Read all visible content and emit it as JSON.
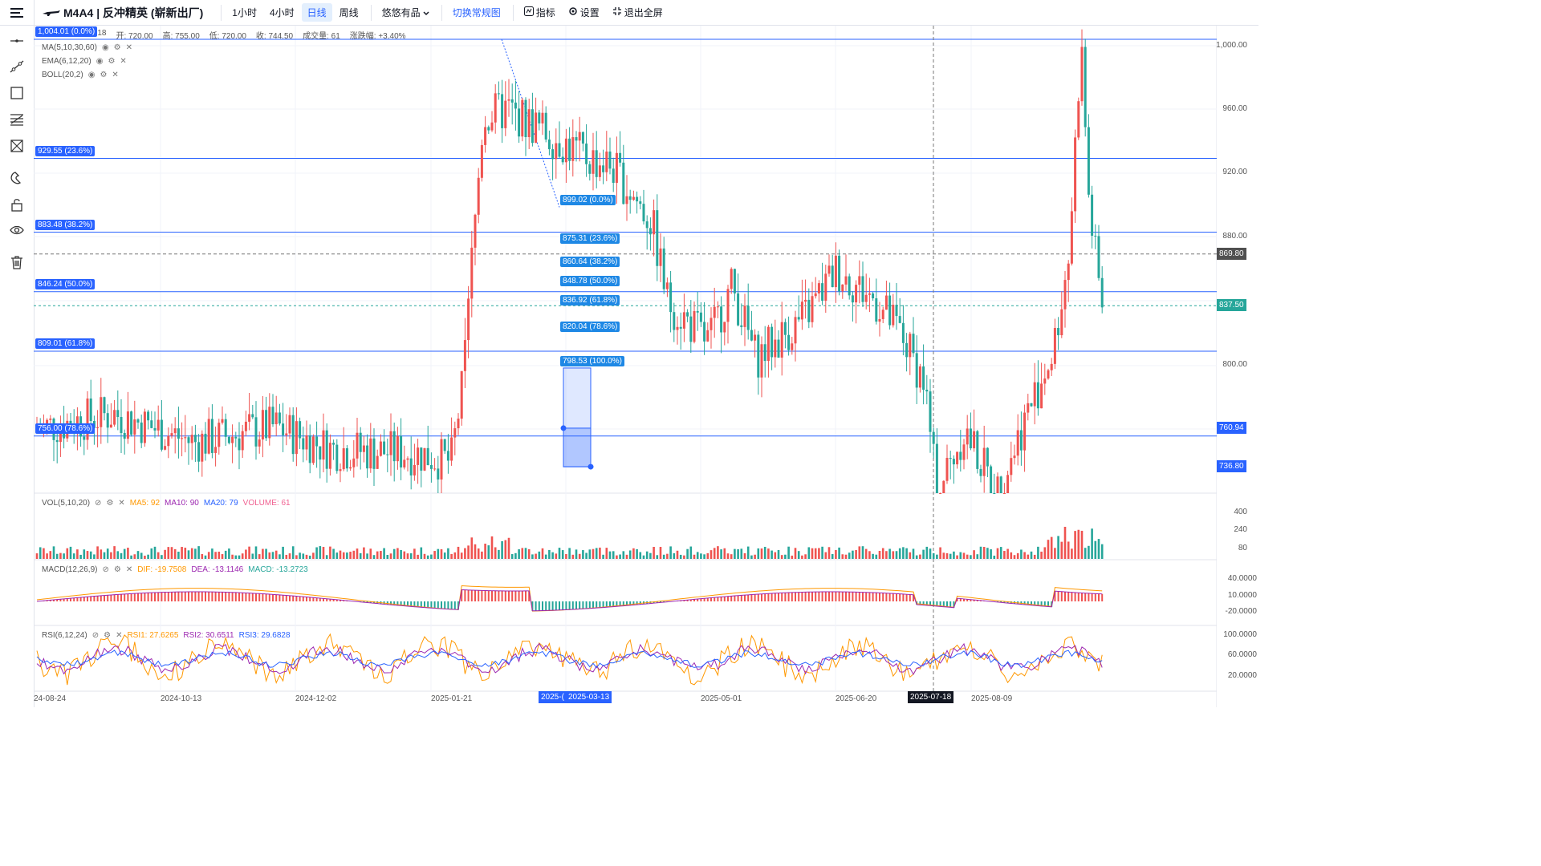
{
  "toolbar": {
    "title": "M4A4 | 反冲精英 (崭新出厂)",
    "intervals": [
      "1小时",
      "4小时",
      "日线",
      "周线"
    ],
    "active_interval": "日线",
    "source": "悠悠有品",
    "switch_view": "切换常规图",
    "indicators": "指标",
    "settings": "设置",
    "exit_fullscreen": "退出全屏"
  },
  "sidebar": {
    "tools": [
      "cursor-icon",
      "trendline-icon",
      "rectangle-icon",
      "fib-icon",
      "pattern-icon",
      "magnet-icon",
      "lock-icon",
      "eye-icon",
      "trash-icon"
    ]
  },
  "legend": {
    "date_partial": "-18",
    "open_label": "开:",
    "open": "720.00",
    "high_label": "高:",
    "high": "755.00",
    "low_label": "低:",
    "low": "720.00",
    "close_label": "收:",
    "close": "744.50",
    "volume_label": "成交量:",
    "volume": "61",
    "change_label": "涨跌幅:",
    "change": "+3.40%",
    "indicators": [
      "MA(5,10,30,60)",
      "EMA(6,12,20)",
      "BOLL(20,2)"
    ]
  },
  "fib_left": [
    {
      "text": "1,004.01 (0.0%)",
      "price": 1004.01
    },
    {
      "text": "929.55 (23.6%)",
      "price": 929.55
    },
    {
      "text": "883.48 (38.2%)",
      "price": 883.48
    },
    {
      "text": "846.24 (50.0%)",
      "price": 846.24
    },
    {
      "text": "809.01 (61.8%)",
      "price": 809.01
    },
    {
      "text": "756.00 (78.6%)",
      "price": 756.0
    }
  ],
  "fib_mid": [
    {
      "text": "899.02 (0.0%)",
      "price": 899.02
    },
    {
      "text": "875.31 (23.6%)",
      "price": 875.31
    },
    {
      "text": "860.64 (38.2%)",
      "price": 860.64
    },
    {
      "text": "848.78 (50.0%)",
      "price": 848.78
    },
    {
      "text": "836.92 (61.8%)",
      "price": 836.92
    },
    {
      "text": "820.04 (78.6%)",
      "price": 820.04
    },
    {
      "text": "798.53 (100.0%)",
      "price": 798.53
    }
  ],
  "price_axis": {
    "labels": [
      "1,000.00",
      "960.00",
      "920.00",
      "880.00",
      "840.00",
      "800.00"
    ],
    "values": [
      1000,
      960,
      920,
      880,
      840,
      800
    ],
    "crosshair_price": "869.80",
    "last_price": "837.50",
    "range_high": "760.94",
    "range_low": "736.80",
    "colors": {
      "last": "#26a69a",
      "crosshair": "#505050",
      "range": "#2962ff"
    }
  },
  "vol_pane": {
    "title": "VOL(5,10,20)",
    "values": [
      {
        "text": "MA5: 92",
        "color": "#ff9800"
      },
      {
        "text": "MA10: 90",
        "color": "#9c27b0"
      },
      {
        "text": "MA20: 79",
        "color": "#2962ff"
      },
      {
        "text": "VOLUME: 61",
        "color": "#f06292"
      }
    ],
    "axis": [
      "400",
      "240",
      "80"
    ]
  },
  "macd_pane": {
    "title": "MACD(12,26,9)",
    "values": [
      {
        "text": "DIF: -19.7508",
        "color": "#ff9800"
      },
      {
        "text": "DEA: -13.1146",
        "color": "#9c27b0"
      },
      {
        "text": "MACD: -13.2723",
        "color": "#26a69a"
      }
    ],
    "axis": [
      "40.0000",
      "10.0000",
      "-20.0000"
    ]
  },
  "rsi_pane": {
    "title": "RSI(6,12,24)",
    "values": [
      {
        "text": "RSI1: 27.6265",
        "color": "#ff9800"
      },
      {
        "text": "RSI2: 30.6511",
        "color": "#9c27b0"
      },
      {
        "text": "RSI3: 29.6828",
        "color": "#2962ff"
      }
    ],
    "axis": [
      "100.0000",
      "60.0000",
      "20.0000"
    ]
  },
  "time_axis": {
    "labels": [
      "24-08-24",
      "2024-10-13",
      "2024-12-02",
      "2025-01-21",
      "2025-05-01",
      "2025-06-20",
      "2025-08-09"
    ],
    "crosshair_date": "2025-07-18",
    "range_start": "2025-(",
    "range_end": "2025-03-13"
  },
  "colors": {
    "up": "#ef5350",
    "down": "#26a69a",
    "fib": "#2962ff"
  }
}
